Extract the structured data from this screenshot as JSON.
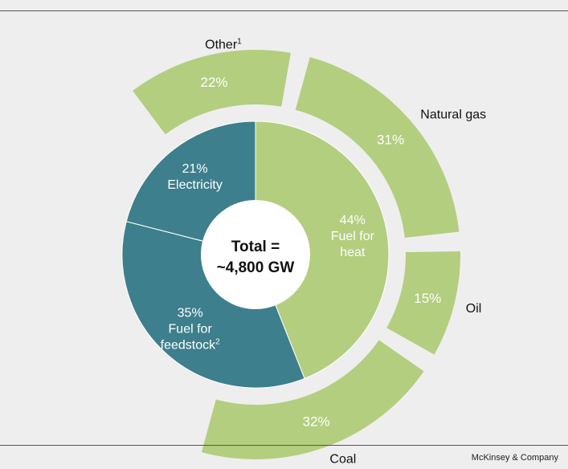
{
  "chart_data": {
    "type": "pie",
    "title": "",
    "center_label": [
      "Total =",
      "~4,800 GW"
    ],
    "inner": [
      {
        "name": "Fuel for heat",
        "value": 44,
        "pct_label": "44%",
        "lines": [
          "Fuel for",
          "heat"
        ],
        "sup": "",
        "color": "#b3ce7f",
        "text_color": "#ffffff"
      },
      {
        "name": "Fuel for feedstock",
        "value": 35,
        "pct_label": "35%",
        "lines": [
          "Fuel for",
          "feedstock"
        ],
        "sup": "2",
        "color": "#3d7f8c",
        "text_color": "#ffffff"
      },
      {
        "name": "Electricity",
        "value": 21,
        "pct_label": "21%",
        "lines": [
          "Electricity"
        ],
        "sup": "",
        "color": "#3d7f8c",
        "text_color": "#ffffff"
      }
    ],
    "outer": [
      {
        "name": "Other",
        "value": 22,
        "pct_label": "22%",
        "sup": "1"
      },
      {
        "name": "Natural gas",
        "value": 31,
        "pct_label": "31%",
        "sup": ""
      },
      {
        "name": "Oil",
        "value": 15,
        "pct_label": "15%",
        "sup": ""
      },
      {
        "name": "Coal",
        "value": 32,
        "pct_label": "32%",
        "sup": ""
      }
    ],
    "outer_color": "#b3ce7f"
  },
  "footer": "McKinsey & Company",
  "colors": {
    "background": "#eeeeee",
    "center": "#ffffff",
    "rule": "#555555"
  }
}
